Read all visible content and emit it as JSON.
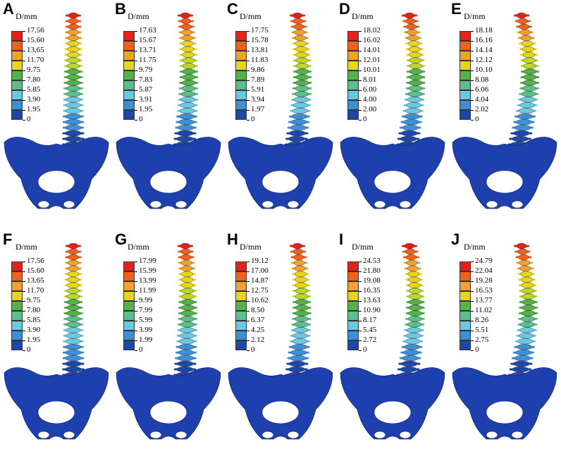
{
  "unit_label": "D/mm",
  "legend_colors": [
    "#e8201c",
    "#f2611c",
    "#f2a12e",
    "#e8d51a",
    "#bcd72a",
    "#55b24a",
    "#5cbf8a",
    "#6cc7e0",
    "#3d8fd6",
    "#1f47a8"
  ],
  "panels": [
    {
      "letter": "A",
      "ticks": [
        "17.56",
        "15.60",
        "13.65",
        "11.70",
        "9.75",
        "7.80",
        "5.85",
        "3.90",
        "1.95",
        "0"
      ],
      "curve": 0.0
    },
    {
      "letter": "B",
      "ticks": [
        "17.63",
        "15.67",
        "13.71",
        "11.75",
        "9.79",
        "7.83",
        "5.87",
        "3.91",
        "1.95",
        "0"
      ],
      "curve": 0.35
    },
    {
      "letter": "C",
      "ticks": [
        "17.75",
        "15.78",
        "13.81",
        "11.83",
        "9.86",
        "7.89",
        "5.91",
        "3.94",
        "1.97",
        "0"
      ],
      "curve": 0.5
    },
    {
      "letter": "D",
      "ticks": [
        "18.02",
        "16.02",
        "14.01",
        "12.01",
        "10.01",
        "8.01",
        "6.00",
        "4.00",
        "2.00",
        "0"
      ],
      "curve": 0.65
    },
    {
      "letter": "E",
      "ticks": [
        "18.18",
        "16.16",
        "14.14",
        "12.12",
        "10.10",
        "8.08",
        "6.06",
        "4.04",
        "2.02",
        "0"
      ],
      "curve": 0.85
    },
    {
      "letter": "F",
      "ticks": [
        "17.56",
        "15.60",
        "13.65",
        "11.70",
        "9.75",
        "7.80",
        "5.85",
        "3.90",
        "1.95",
        "0"
      ],
      "curve": 0.0
    },
    {
      "letter": "G",
      "ticks": [
        "17.99",
        "15.99",
        "13.99",
        "11.99",
        "9.99",
        "7.99",
        "5.99",
        "3.99",
        "1.99",
        "0"
      ],
      "curve": 0.25
    },
    {
      "letter": "H",
      "ticks": [
        "19.12",
        "17.00",
        "14.87",
        "12.75",
        "10.62",
        "8.50",
        "6.37",
        "4.25",
        "2.12",
        "0"
      ],
      "curve": 0.45
    },
    {
      "letter": "I",
      "ticks": [
        "24.53",
        "21.80",
        "19.08",
        "16.35",
        "13.63",
        "10.90",
        "8.17",
        "5.45",
        "2.72",
        "0"
      ],
      "curve": 0.6
    },
    {
      "letter": "J",
      "ticks": [
        "24.79",
        "22.04",
        "19.28",
        "16.53",
        "13.77",
        "11.02",
        "8.26",
        "5.51",
        "2.75",
        "0"
      ],
      "curve": 0.7
    }
  ]
}
